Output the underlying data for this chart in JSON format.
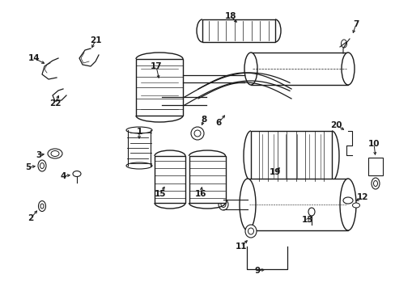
{
  "background_color": "#ffffff",
  "line_color": "#1a1a1a",
  "text_color": "#1a1a1a",
  "label_fontsize": 7.5,
  "fig_width": 4.89,
  "fig_height": 3.6,
  "dpi": 100
}
